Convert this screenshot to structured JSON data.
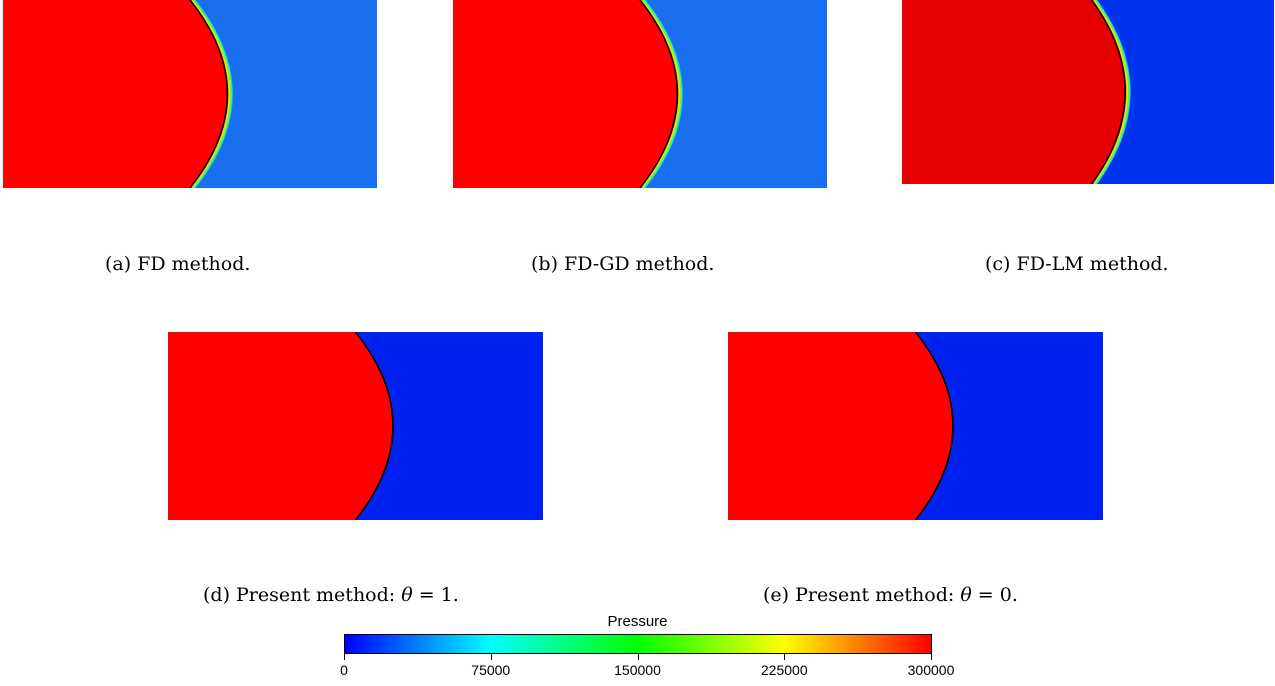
{
  "panels": [
    {
      "id": "a",
      "caption_prefix": "(a) FD method.",
      "caption_math": "",
      "caption_suffix": "",
      "left_color": "#ff0000",
      "right_color": "#1a6ff0",
      "smeared": true
    },
    {
      "id": "b",
      "caption_prefix": "(b) FD-GD method.",
      "caption_math": "",
      "caption_suffix": "",
      "left_color": "#ff0000",
      "right_color": "#1a6ff0",
      "smeared": true
    },
    {
      "id": "c",
      "caption_prefix": "(c) FD-LM method.",
      "caption_math": "",
      "caption_suffix": "",
      "left_color": "#e60000",
      "right_color": "#0033ee",
      "smeared": true
    },
    {
      "id": "d",
      "caption_prefix": "(d) Present method:  ",
      "caption_math": "θ",
      "caption_suffix": " = 1.",
      "left_color": "#ff0000",
      "right_color": "#0022ee",
      "smeared": false
    },
    {
      "id": "e",
      "caption_prefix": "(e) Present method:  ",
      "caption_math": "θ",
      "caption_suffix": " = 0.",
      "left_color": "#ff0000",
      "right_color": "#0022ee",
      "smeared": false
    }
  ],
  "colorbar": {
    "title": "Pressure",
    "min": 0,
    "max": 300000,
    "ticks": [
      "0",
      "75000",
      "150000",
      "225000",
      "300000"
    ],
    "colors": [
      "#0000ff",
      "#00ffff",
      "#00ff00",
      "#ffff00",
      "#ff0000"
    ]
  }
}
